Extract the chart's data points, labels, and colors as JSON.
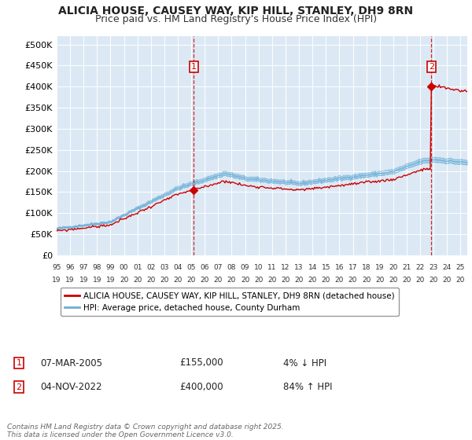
{
  "title": "ALICIA HOUSE, CAUSEY WAY, KIP HILL, STANLEY, DH9 8RN",
  "subtitle": "Price paid vs. HM Land Registry's House Price Index (HPI)",
  "bg_color": "#dce9f5",
  "grid_color": "#ffffff",
  "hpi_color": "#6baed6",
  "price_color": "#cc0000",
  "marker_color": "#cc0000",
  "dashed_color": "#cc0000",
  "ylim": [
    0,
    520000
  ],
  "yticks": [
    0,
    50000,
    100000,
    150000,
    200000,
    250000,
    300000,
    350000,
    400000,
    450000,
    500000
  ],
  "ytick_labels": [
    "£0",
    "£50K",
    "£100K",
    "£150K",
    "£200K",
    "£250K",
    "£300K",
    "£350K",
    "£400K",
    "£450K",
    "£500K"
  ],
  "xmin": 1995.0,
  "xmax": 2025.5,
  "xticks": [
    1995,
    1996,
    1997,
    1998,
    1999,
    2000,
    2001,
    2002,
    2003,
    2004,
    2005,
    2006,
    2007,
    2008,
    2009,
    2010,
    2011,
    2012,
    2013,
    2014,
    2015,
    2016,
    2017,
    2018,
    2019,
    2020,
    2021,
    2022,
    2023,
    2024,
    2025
  ],
  "sale1_x": 2005.18,
  "sale1_y": 155000,
  "sale2_x": 2022.84,
  "sale2_y": 400000,
  "legend_label1": "ALICIA HOUSE, CAUSEY WAY, KIP HILL, STANLEY, DH9 8RN (detached house)",
  "legend_label2": "HPI: Average price, detached house, County Durham",
  "annotation1": [
    "07-MAR-2005",
    "£155,000",
    "4% ↓ HPI"
  ],
  "annotation2": [
    "04-NOV-2022",
    "£400,000",
    "84% ↑ HPI"
  ],
  "footer": "Contains HM Land Registry data © Crown copyright and database right 2025.\nThis data is licensed under the Open Government Licence v3.0.",
  "title_fontsize": 10,
  "subtitle_fontsize": 9
}
